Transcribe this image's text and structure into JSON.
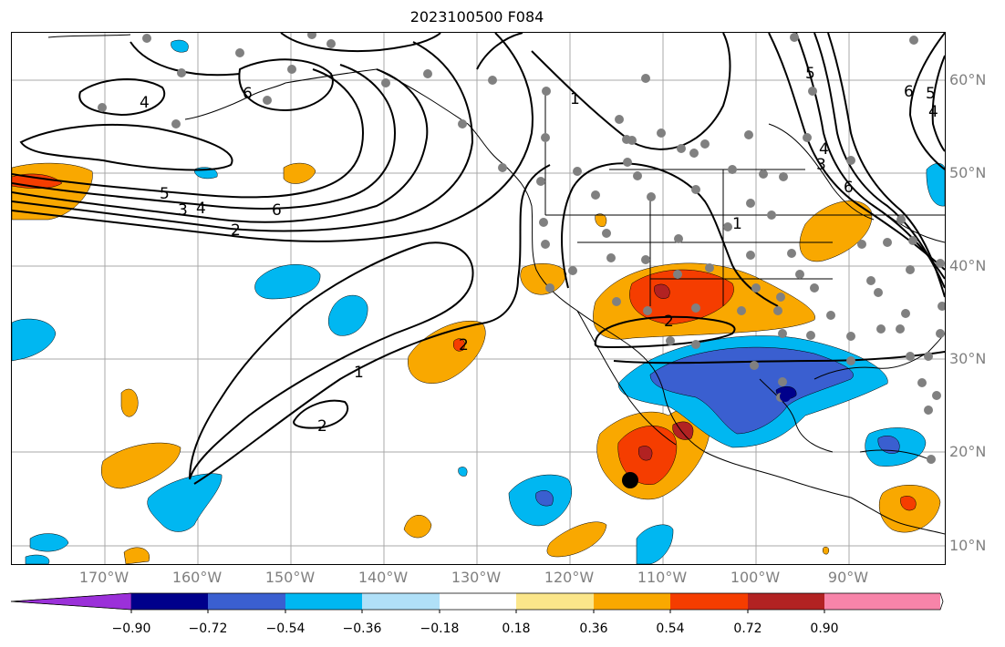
{
  "title": "2023100500 F084",
  "lat_labels": [
    "60°N",
    "50°N",
    "40°N",
    "30°N",
    "20°N",
    "10°N"
  ],
  "lon_labels": [
    "170°W",
    "160°W",
    "150°W",
    "140°W",
    "130°W",
    "120°W",
    "110°W",
    "100°W",
    "90°W"
  ],
  "contour_labels": [
    "4",
    "6",
    "5",
    "3",
    "4",
    "6",
    "2",
    "1",
    "2",
    "1",
    "2",
    "2",
    "1",
    "3",
    "4",
    "5",
    "6",
    "5",
    "4",
    "6"
  ],
  "colorbar": {
    "tick_labels": [
      "−0.90",
      "−0.72",
      "−0.54",
      "−0.36",
      "−0.18",
      "0.18",
      "0.36",
      "0.54",
      "0.72",
      "0.90"
    ],
    "colors": [
      "#9b30d9",
      "#00008b",
      "#3a5fd0",
      "#00b7f1",
      "#b0e0f8",
      "#ffffff",
      "#fbe68a",
      "#f9a800",
      "#f53d00",
      "#b22222",
      "#f784a9"
    ]
  },
  "shading_colors": {
    "orange": "#f9a800",
    "red_orange": "#f53d00",
    "dark_red": "#b22222",
    "light_blue": "#00b7f1",
    "medium_blue": "#3a5fd0",
    "navy": "#00008b",
    "station_dot": "#808080"
  }
}
